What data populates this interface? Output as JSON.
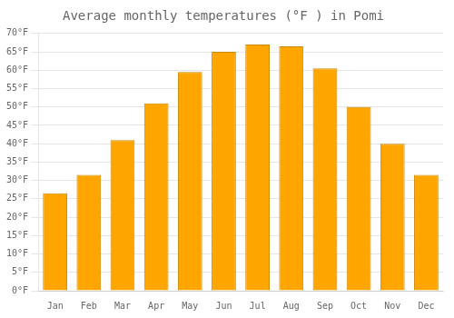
{
  "chart_data": {
    "type": "bar",
    "title": "Average monthly temperatures (°F ) in Pomi",
    "categories": [
      "Jan",
      "Feb",
      "Mar",
      "Apr",
      "May",
      "Jun",
      "Jul",
      "Aug",
      "Sep",
      "Oct",
      "Nov",
      "Dec"
    ],
    "values": [
      26.5,
      31.5,
      41.0,
      51.0,
      59.5,
      65.0,
      67.0,
      66.5,
      60.5,
      50.0,
      40.0,
      31.5
    ],
    "color": "#FFA500",
    "ylim": [
      0,
      70
    ],
    "yticks": [
      {
        "value": 0,
        "label": "0°F"
      },
      {
        "value": 5,
        "label": "5°F"
      },
      {
        "value": 10,
        "label": "10°F"
      },
      {
        "value": 15,
        "label": "15°F"
      },
      {
        "value": 20,
        "label": "20°F"
      },
      {
        "value": 25,
        "label": "25°F"
      },
      {
        "value": 30,
        "label": "30°F"
      },
      {
        "value": 35,
        "label": "35°F"
      },
      {
        "value": 40,
        "label": "40°F"
      },
      {
        "value": 45,
        "label": "45°F"
      },
      {
        "value": 50,
        "label": "50°F"
      },
      {
        "value": 55,
        "label": "55°F"
      },
      {
        "value": 60,
        "label": "60°F"
      },
      {
        "value": 65,
        "label": "65°F"
      },
      {
        "value": 70,
        "label": "70°F"
      }
    ],
    "grid": true
  }
}
